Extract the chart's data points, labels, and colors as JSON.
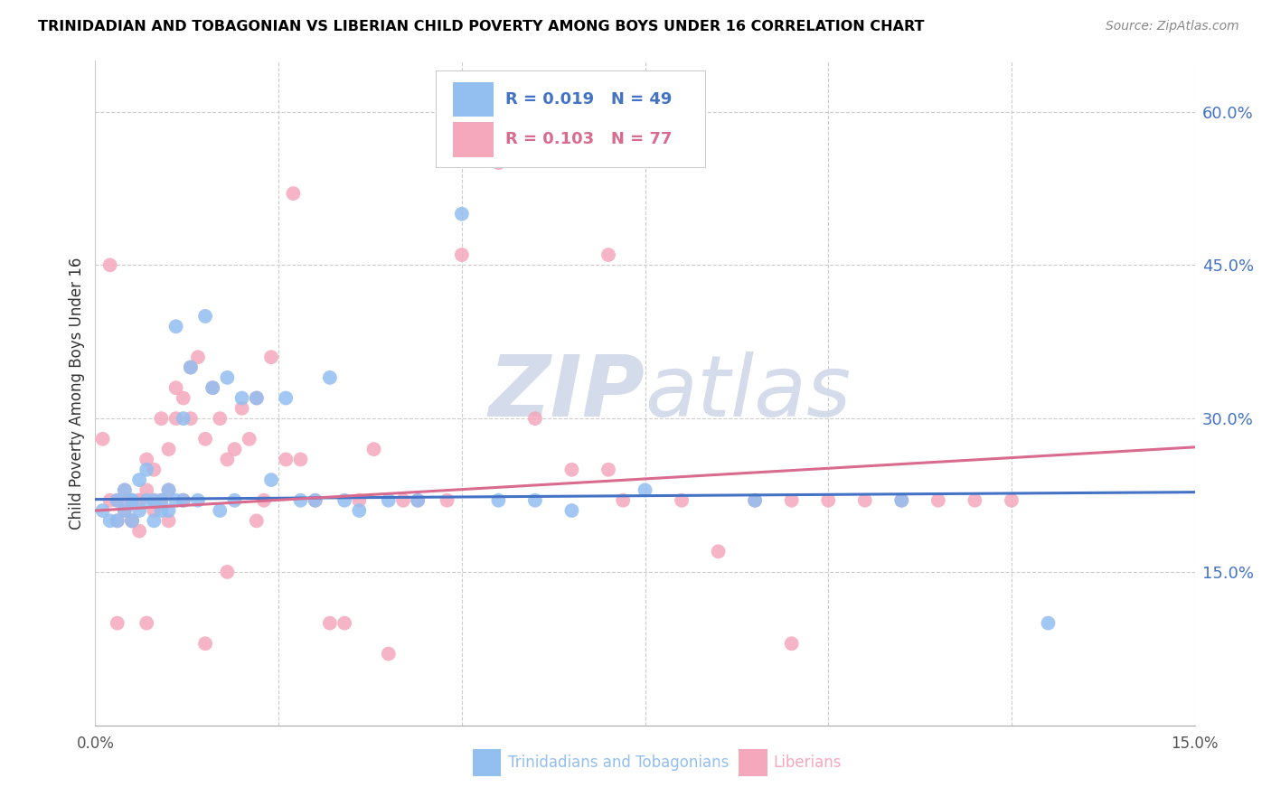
{
  "title": "TRINIDADIAN AND TOBAGONIAN VS LIBERIAN CHILD POVERTY AMONG BOYS UNDER 16 CORRELATION CHART",
  "source": "Source: ZipAtlas.com",
  "ylabel": "Child Poverty Among Boys Under 16",
  "xlim": [
    0.0,
    0.15
  ],
  "ylim": [
    0.0,
    0.65
  ],
  "yticks": [
    0.15,
    0.3,
    0.45,
    0.6
  ],
  "ytick_labels": [
    "15.0%",
    "30.0%",
    "45.0%",
    "60.0%"
  ],
  "xticks": [
    0.0,
    0.025,
    0.05,
    0.075,
    0.1,
    0.125,
    0.15
  ],
  "blue_color": "#92BEF0",
  "pink_color": "#F5A8BC",
  "line_blue": "#4472C4",
  "line_pink": "#D96B8E",
  "label1": "Trinidadians and Tobagonians",
  "label2": "Liberians",
  "blue_x": [
    0.001,
    0.002,
    0.003,
    0.003,
    0.004,
    0.004,
    0.005,
    0.005,
    0.005,
    0.006,
    0.006,
    0.007,
    0.007,
    0.008,
    0.008,
    0.009,
    0.009,
    0.01,
    0.01,
    0.011,
    0.011,
    0.012,
    0.012,
    0.013,
    0.014,
    0.015,
    0.016,
    0.017,
    0.018,
    0.019,
    0.02,
    0.022,
    0.024,
    0.026,
    0.028,
    0.03,
    0.032,
    0.034,
    0.036,
    0.04,
    0.044,
    0.05,
    0.055,
    0.06,
    0.065,
    0.075,
    0.09,
    0.11,
    0.13
  ],
  "blue_y": [
    0.21,
    0.2,
    0.22,
    0.2,
    0.21,
    0.23,
    0.22,
    0.2,
    0.22,
    0.21,
    0.24,
    0.22,
    0.25,
    0.22,
    0.2,
    0.21,
    0.22,
    0.23,
    0.21,
    0.39,
    0.22,
    0.3,
    0.22,
    0.35,
    0.22,
    0.4,
    0.33,
    0.21,
    0.34,
    0.22,
    0.32,
    0.32,
    0.24,
    0.32,
    0.22,
    0.22,
    0.34,
    0.22,
    0.21,
    0.22,
    0.22,
    0.5,
    0.22,
    0.22,
    0.21,
    0.23,
    0.22,
    0.22,
    0.1
  ],
  "pink_x": [
    0.001,
    0.002,
    0.003,
    0.003,
    0.004,
    0.004,
    0.005,
    0.005,
    0.006,
    0.006,
    0.007,
    0.007,
    0.008,
    0.008,
    0.009,
    0.009,
    0.01,
    0.01,
    0.011,
    0.011,
    0.012,
    0.012,
    0.013,
    0.013,
    0.014,
    0.015,
    0.016,
    0.017,
    0.018,
    0.019,
    0.02,
    0.021,
    0.022,
    0.023,
    0.024,
    0.026,
    0.027,
    0.028,
    0.03,
    0.032,
    0.034,
    0.036,
    0.038,
    0.04,
    0.042,
    0.044,
    0.048,
    0.05,
    0.055,
    0.06,
    0.065,
    0.07,
    0.072,
    0.08,
    0.085,
    0.09,
    0.095,
    0.1,
    0.105,
    0.11,
    0.115,
    0.12,
    0.125,
    0.002,
    0.003,
    0.004,
    0.005,
    0.006,
    0.007,
    0.008,
    0.01,
    0.012,
    0.015,
    0.018,
    0.022,
    0.07,
    0.095
  ],
  "pink_y": [
    0.28,
    0.22,
    0.2,
    0.22,
    0.23,
    0.21,
    0.22,
    0.2,
    0.19,
    0.22,
    0.23,
    0.26,
    0.25,
    0.22,
    0.3,
    0.22,
    0.27,
    0.23,
    0.3,
    0.33,
    0.32,
    0.22,
    0.3,
    0.35,
    0.36,
    0.28,
    0.33,
    0.3,
    0.26,
    0.27,
    0.31,
    0.28,
    0.32,
    0.22,
    0.36,
    0.26,
    0.52,
    0.26,
    0.22,
    0.1,
    0.1,
    0.22,
    0.27,
    0.07,
    0.22,
    0.22,
    0.22,
    0.46,
    0.55,
    0.3,
    0.25,
    0.46,
    0.22,
    0.22,
    0.17,
    0.22,
    0.22,
    0.22,
    0.22,
    0.22,
    0.22,
    0.22,
    0.22,
    0.45,
    0.1,
    0.22,
    0.2,
    0.22,
    0.1,
    0.21,
    0.2,
    0.22,
    0.08,
    0.15,
    0.2,
    0.25,
    0.08
  ],
  "blue_trend_x": [
    0.0,
    0.15
  ],
  "blue_trend_y": [
    0.221,
    0.228
  ],
  "pink_trend_x": [
    0.0,
    0.15
  ],
  "pink_trend_y": [
    0.21,
    0.272
  ]
}
